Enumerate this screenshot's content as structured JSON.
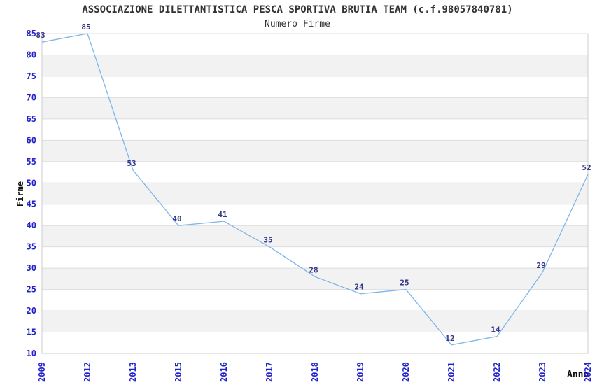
{
  "chart_data": {
    "type": "line",
    "title": "ASSOCIAZIONE DILETTANTISTICA PESCA SPORTIVA BRUTIA TEAM (c.f.98057840781)",
    "subtitle": "Numero Firme",
    "xlabel": "Anno",
    "ylabel": "Firme",
    "categories": [
      "2009",
      "2012",
      "2013",
      "2015",
      "2016",
      "2017",
      "2018",
      "2019",
      "2020",
      "2021",
      "2022",
      "2023",
      "2024"
    ],
    "values": [
      83,
      85,
      53,
      40,
      41,
      35,
      28,
      24,
      25,
      12,
      14,
      29,
      52
    ],
    "ylim": [
      10,
      85
    ],
    "ytick_step": 5,
    "grid": true,
    "alternating_bands": true,
    "legend": "none",
    "colors": {
      "line": "#7eb6e8",
      "tick_label": "#2222cc",
      "data_label": "#333388",
      "band": "#f2f2f2",
      "gridline": "#dddddd",
      "axis": "#cccccc",
      "title": "#333333",
      "axis_title": "#111111"
    }
  }
}
